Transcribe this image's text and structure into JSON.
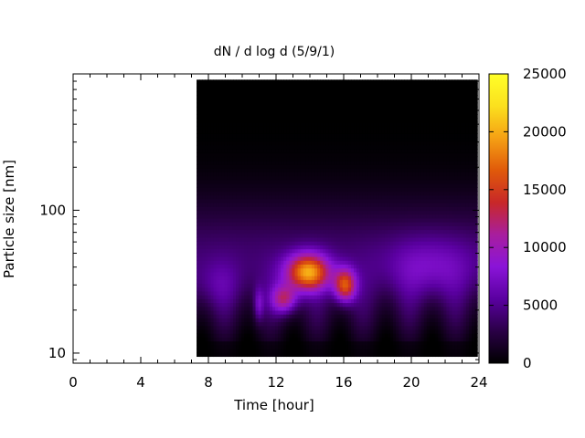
{
  "chart_data": {
    "type": "heatmap",
    "title": "dN / d log d (5/9/1)",
    "xlabel": "Time [hour]",
    "ylabel": "Particle size [nm]",
    "x_range": [
      0,
      24
    ],
    "x_ticks": [
      "0",
      "4",
      "8",
      "12",
      "16",
      "20",
      "24"
    ],
    "y_scale": "log",
    "y_range": [
      8.5,
      900
    ],
    "y_ticks": [
      {
        "value": 10,
        "label": "10"
      },
      {
        "value": 100,
        "label": "100"
      }
    ],
    "colorbar": {
      "range": [
        0,
        25000
      ],
      "ticks": [
        "0",
        "5000",
        "10000",
        "15000",
        "20000",
        "25000"
      ],
      "palette": [
        "#000000",
        "#2a0046",
        "#5a00a0",
        "#8a14d8",
        "#a81e9e",
        "#c82828",
        "#e05a0a",
        "#f5a014",
        "#fbe01e",
        "#ffff28"
      ]
    },
    "data_extent": {
      "time_start": 7.3,
      "time_end": 23.9,
      "size_min": 9.5,
      "size_max": 820,
      "saturated_top_size": 520,
      "missing_value_color": "#000000"
    },
    "features": [
      {
        "time": 13.8,
        "size": 37,
        "value": 23000
      },
      {
        "time": 16.0,
        "size": 30,
        "value": 20000
      },
      {
        "time": 12.3,
        "size": 25,
        "value": 13000
      }
    ],
    "grid": false
  }
}
